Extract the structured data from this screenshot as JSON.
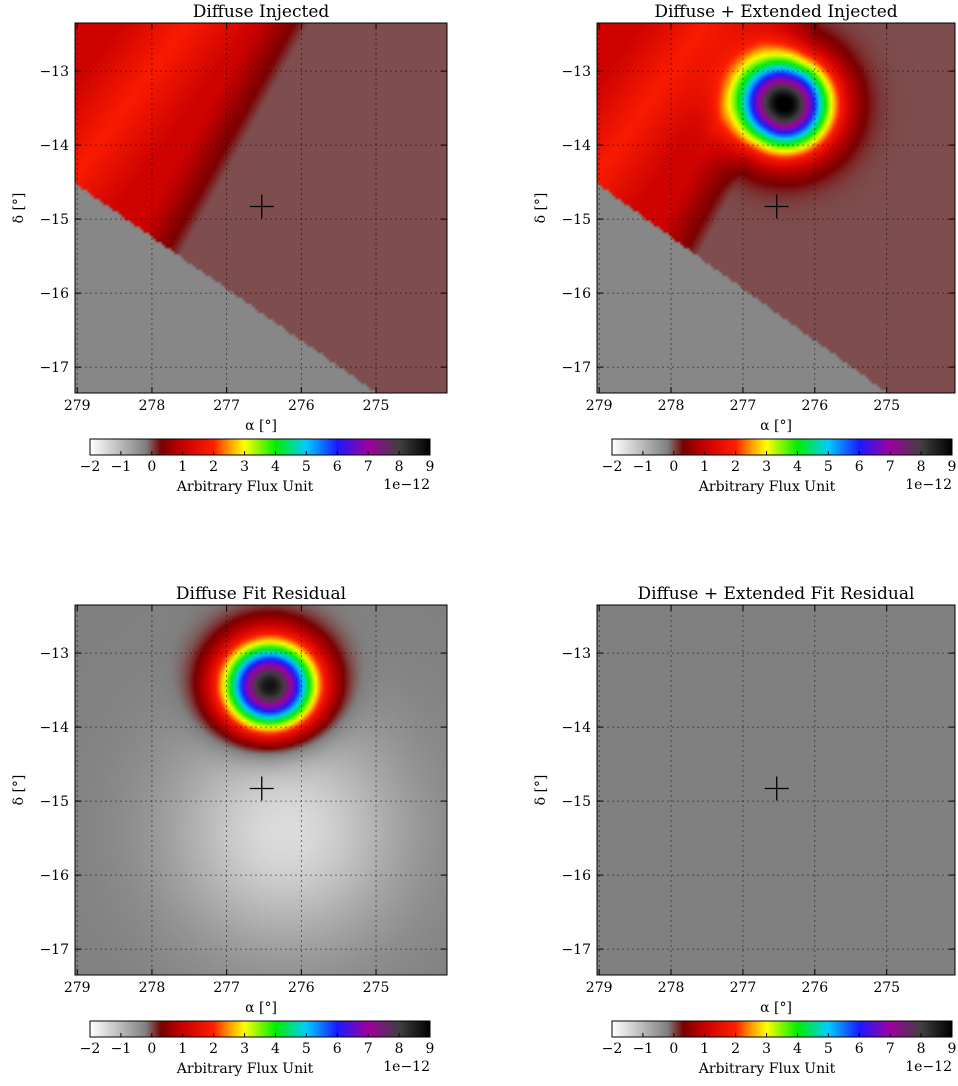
{
  "colormap": {
    "min": -2,
    "max": 9,
    "ticks": [
      "−2",
      "−1",
      "0",
      "1",
      "2",
      "3",
      "4",
      "5",
      "6",
      "7",
      "8",
      "9"
    ],
    "label": "Arbitrary Flux Unit",
    "offset_text": "1e−12",
    "stops": [
      {
        "v": -2.0,
        "color": "#ffffff"
      },
      {
        "v": -0.2,
        "color": "#808080"
      },
      {
        "v": 0.3,
        "color": "#7a0000"
      },
      {
        "v": 1.0,
        "color": "#c80000"
      },
      {
        "v": 2.0,
        "color": "#ff1e00"
      },
      {
        "v": 2.5,
        "color": "#ff9b00"
      },
      {
        "v": 3.0,
        "color": "#ffff00"
      },
      {
        "v": 4.0,
        "color": "#00ee00"
      },
      {
        "v": 5.0,
        "color": "#00ccff"
      },
      {
        "v": 6.0,
        "color": "#1a1aff"
      },
      {
        "v": 7.0,
        "color": "#a000a0"
      },
      {
        "v": 8.0,
        "color": "#404040"
      },
      {
        "v": 9.0,
        "color": "#000000"
      }
    ]
  },
  "chart_data": [
    {
      "type": "heatmap",
      "title": "Diffuse Injected",
      "xlabel": "α [°]",
      "ylabel": "δ [°]",
      "xlim": [
        279.03,
        274.05
      ],
      "ylim": [
        -17.35,
        -12.35
      ],
      "xticks": [
        279,
        278,
        277,
        276,
        275
      ],
      "yticks": [
        -13,
        -14,
        -15,
        -16,
        -17
      ],
      "marker": {
        "ra": 276.53,
        "dec": -14.83,
        "symbol": "+"
      },
      "field": {
        "diffuse": 1,
        "extended": 0,
        "residual_diffuse": 0
      }
    },
    {
      "type": "heatmap",
      "title": "Diffuse + Extended Injected",
      "xlabel": "α [°]",
      "ylabel": "δ [°]",
      "xlim": [
        279.03,
        274.05
      ],
      "ylim": [
        -17.35,
        -12.35
      ],
      "xticks": [
        279,
        278,
        277,
        276,
        275
      ],
      "yticks": [
        -13,
        -14,
        -15,
        -16,
        -17
      ],
      "marker": {
        "ra": 276.53,
        "dec": -14.83,
        "symbol": "+"
      },
      "field": {
        "diffuse": 1,
        "extended": 1,
        "residual_diffuse": 0
      }
    },
    {
      "type": "heatmap",
      "title": "Diffuse Fit Residual",
      "xlabel": "α [°]",
      "ylabel": "δ [°]",
      "xlim": [
        279.03,
        274.05
      ],
      "ylim": [
        -17.35,
        -12.35
      ],
      "xticks": [
        279,
        278,
        277,
        276,
        275
      ],
      "yticks": [
        -13,
        -14,
        -15,
        -16,
        -17
      ],
      "marker": {
        "ra": 276.53,
        "dec": -14.83,
        "symbol": "+"
      },
      "field": {
        "diffuse": 0,
        "extended": 1,
        "residual_diffuse": 1
      }
    },
    {
      "type": "heatmap",
      "title": "Diffuse + Extended Fit Residual",
      "xlabel": "α [°]",
      "ylabel": "δ [°]",
      "xlim": [
        279.03,
        274.05
      ],
      "ylim": [
        -17.35,
        -12.35
      ],
      "xticks": [
        279,
        278,
        277,
        276,
        275
      ],
      "yticks": [
        -13,
        -14,
        -15,
        -16,
        -17
      ],
      "marker": {
        "ra": 276.53,
        "dec": -14.83,
        "symbol": "+"
      },
      "field": {
        "diffuse": 0,
        "extended": 0,
        "residual_diffuse": 0
      }
    }
  ]
}
